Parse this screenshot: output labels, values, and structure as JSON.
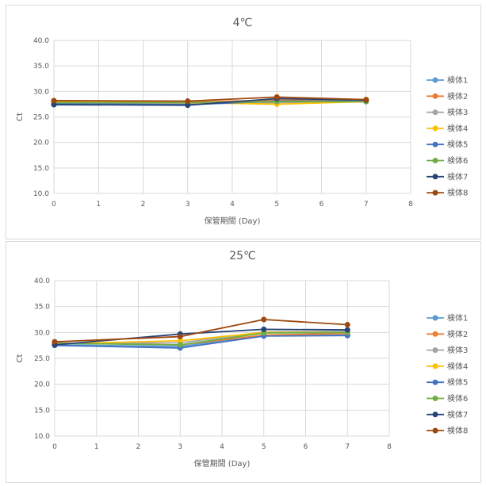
{
  "chart_data": [
    {
      "type": "line",
      "title": "4℃",
      "xlabel": "保管期間 (Day)",
      "ylabel": "Ct",
      "xlim": [
        0,
        8
      ],
      "ylim": [
        10.0,
        40.0
      ],
      "xticks": [
        "0",
        "1",
        "2",
        "3",
        "4",
        "5",
        "6",
        "7",
        "8"
      ],
      "yticks": [
        "10.0",
        "15.0",
        "20.0",
        "25.0",
        "30.0",
        "35.0",
        "40.0"
      ],
      "grid": true,
      "legend": "right",
      "x": [
        0,
        3,
        5,
        7
      ],
      "series": [
        {
          "name": "検体1",
          "color": "#5b9bd5",
          "values": [
            27.8,
            27.6,
            28.2,
            28.1
          ]
        },
        {
          "name": "検体2",
          "color": "#ed7d31",
          "values": [
            28.0,
            27.9,
            28.3,
            28.2
          ]
        },
        {
          "name": "検体3",
          "color": "#a5a5a5",
          "values": [
            27.7,
            27.6,
            27.8,
            28.0
          ]
        },
        {
          "name": "検体4",
          "color": "#ffc000",
          "values": [
            27.9,
            27.8,
            27.5,
            28.0
          ]
        },
        {
          "name": "検体5",
          "color": "#4472c4",
          "values": [
            27.6,
            27.4,
            28.1,
            28.1
          ]
        },
        {
          "name": "検体6",
          "color": "#70ad47",
          "values": [
            27.8,
            27.8,
            28.0,
            28.0
          ]
        },
        {
          "name": "検体7",
          "color": "#264478",
          "values": [
            27.4,
            27.3,
            28.6,
            28.3
          ]
        },
        {
          "name": "検体8",
          "color": "#9e480e",
          "values": [
            28.2,
            28.1,
            28.9,
            28.4
          ]
        }
      ]
    },
    {
      "type": "line",
      "title": "25℃",
      "xlabel": "保管期間 (Day)",
      "ylabel": "Ct",
      "xlim": [
        0,
        8
      ],
      "ylim": [
        10.0,
        40.0
      ],
      "xticks": [
        "0",
        "1",
        "2",
        "3",
        "4",
        "5",
        "6",
        "7",
        "8"
      ],
      "yticks": [
        "10.0",
        "15.0",
        "20.0",
        "25.0",
        "30.0",
        "35.0",
        "40.0"
      ],
      "grid": true,
      "legend": "right",
      "x": [
        0,
        3,
        5,
        7
      ],
      "series": [
        {
          "name": "検体1",
          "color": "#5b9bd5",
          "values": [
            27.6,
            27.3,
            29.4,
            29.5
          ]
        },
        {
          "name": "検体2",
          "color": "#ed7d31",
          "values": [
            28.0,
            27.6,
            29.5,
            29.8
          ]
        },
        {
          "name": "検体3",
          "color": "#a5a5a5",
          "values": [
            27.9,
            28.0,
            30.1,
            30.2
          ]
        },
        {
          "name": "検体4",
          "color": "#ffc000",
          "values": [
            27.8,
            28.4,
            30.0,
            30.0
          ]
        },
        {
          "name": "検体5",
          "color": "#4472c4",
          "values": [
            27.5,
            27.0,
            29.3,
            29.4
          ]
        },
        {
          "name": "検体6",
          "color": "#70ad47",
          "values": [
            27.9,
            27.6,
            29.9,
            30.0
          ]
        },
        {
          "name": "検体7",
          "color": "#264478",
          "values": [
            27.6,
            29.7,
            30.6,
            30.5
          ]
        },
        {
          "name": "検体8",
          "color": "#9e480e",
          "values": [
            28.2,
            29.2,
            32.5,
            31.5
          ]
        }
      ]
    }
  ]
}
